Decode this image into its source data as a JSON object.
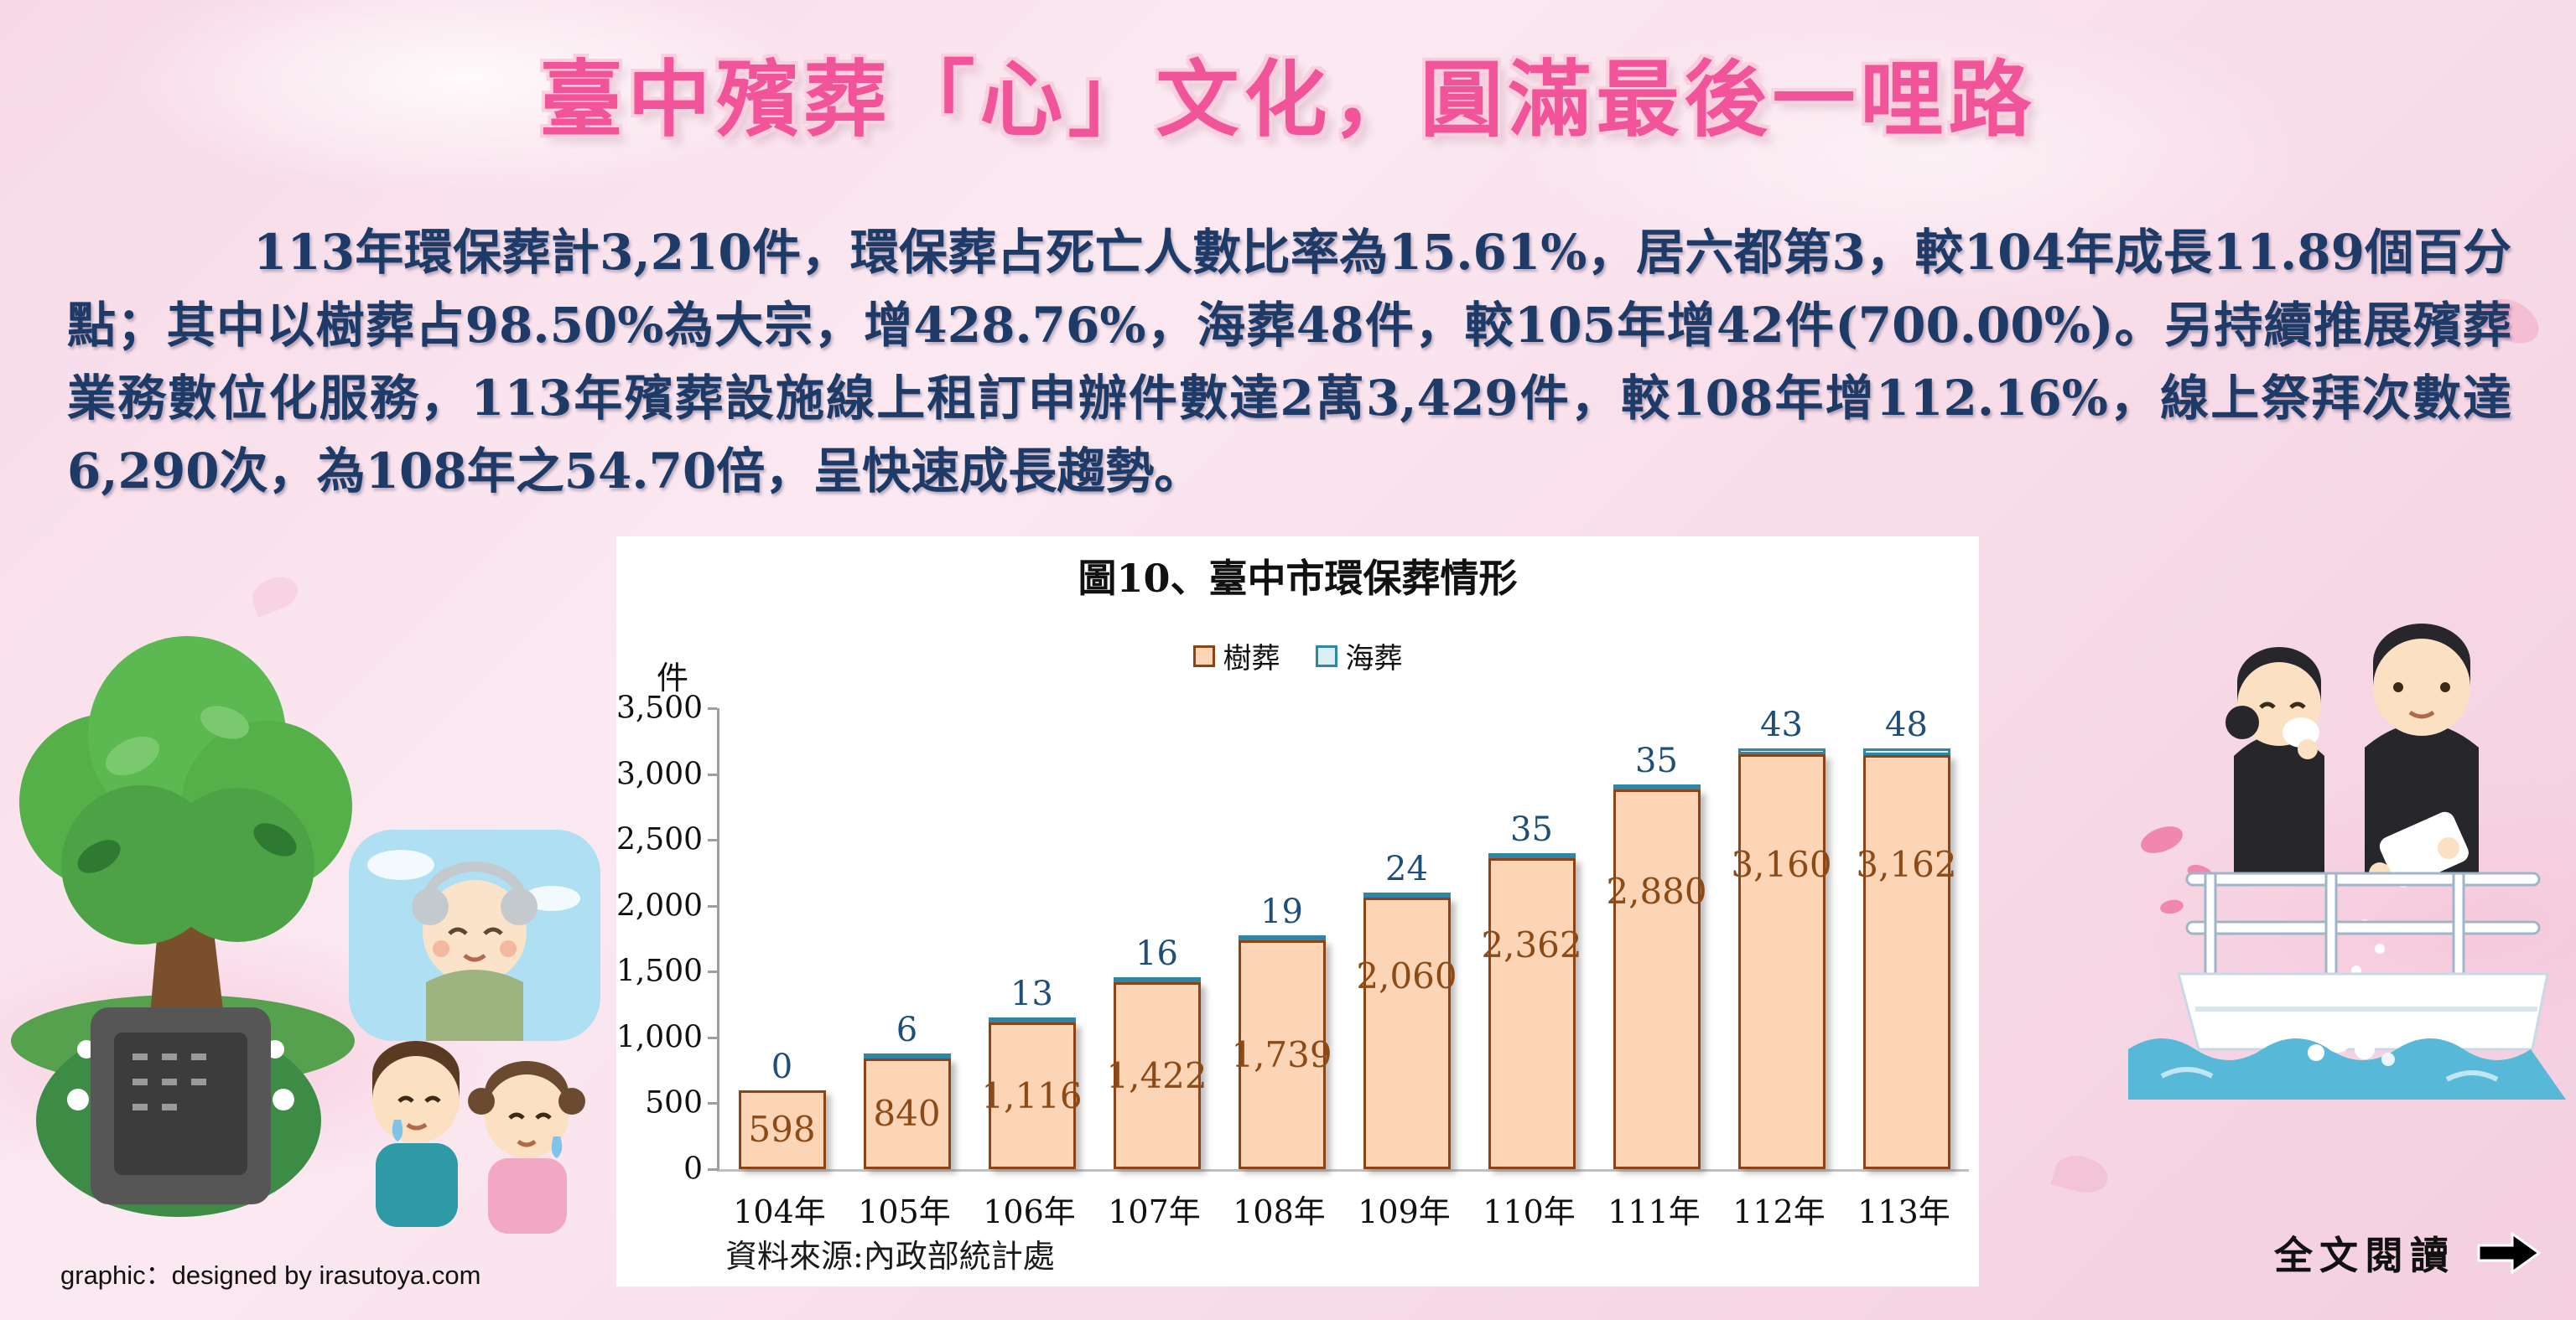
{
  "page": {
    "title": "臺中殯葬「心」文化，圓滿最後一哩路",
    "intro_text": "113年環保葬計3,210件，環保葬占死亡人數比率為15.61%，居六都第3，較104年成長11.89個百分點；其中以樹葬占98.50%為大宗，增428.76%，海葬48件，較105年增42件(700.00%)。另持續推展殯葬業務數位化服務，113年殯葬設施線上租訂申辦件數達2萬3,429件，較108年增112.16%，線上祭拜次數達6,290次，為108年之54.70倍，呈快速成長趨勢。"
  },
  "chart_data": {
    "type": "bar",
    "title": "圖10、臺中市環保葬情形",
    "unit_label": "件",
    "categories": [
      "104年",
      "105年",
      "106年",
      "107年",
      "108年",
      "109年",
      "110年",
      "111年",
      "112年",
      "113年"
    ],
    "series": [
      {
        "name": "樹葬",
        "values": [
          598,
          840,
          1116,
          1422,
          1739,
          2060,
          2362,
          2880,
          3160,
          3162
        ],
        "labels": [
          "598",
          "840",
          "1,116",
          "1,422",
          "1,739",
          "2,060",
          "2,362",
          "2,880",
          "3,160",
          "3,162"
        ]
      },
      {
        "name": "海葬",
        "values": [
          0,
          6,
          13,
          16,
          19,
          24,
          35,
          35,
          43,
          48
        ],
        "labels": [
          "0",
          "6",
          "13",
          "16",
          "19",
          "24",
          "35",
          "35",
          "43",
          "48"
        ]
      }
    ],
    "stacked": true,
    "ylim": [
      0,
      3500
    ],
    "ytick_step": 500,
    "yticks": [
      "0",
      "500",
      "1,000",
      "1,500",
      "2,000",
      "2,500",
      "3,000",
      "3,500"
    ],
    "grid": false,
    "legend_position": "top",
    "source": "資料來源:內政部統計處"
  },
  "colors": {
    "accent_pink": "#f2549a",
    "intro_text": "#1e3a66",
    "tree_fill": "#fbd5b5",
    "tree_border": "#8c4415",
    "tree_label": "#8c4a17",
    "sea_fill": "#daeef3",
    "sea_border": "#2e86a8",
    "sea_label": "#1f4e79"
  },
  "footer": {
    "credit": "graphic：designed by irasutoya.com",
    "read_more_label": "全文閱讀"
  },
  "icons": {
    "right_arrow": "➡"
  }
}
